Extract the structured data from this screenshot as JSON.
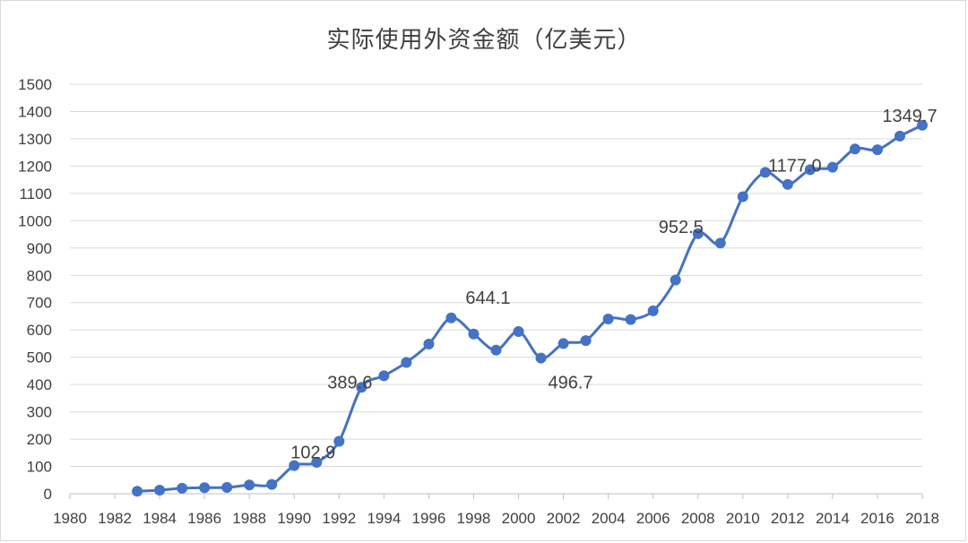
{
  "chart_data": {
    "type": "line",
    "title": "实际使用外资金额（亿美元）",
    "ylim": [
      0,
      1500
    ],
    "y_ticks": [
      0,
      100,
      200,
      300,
      400,
      500,
      600,
      700,
      800,
      900,
      1000,
      1100,
      1200,
      1300,
      1400,
      1500
    ],
    "xlim": [
      1980,
      2018
    ],
    "x_ticks": [
      1980,
      1982,
      1984,
      1986,
      1988,
      1990,
      1992,
      1994,
      1996,
      1998,
      2000,
      2002,
      2004,
      2006,
      2008,
      2010,
      2012,
      2014,
      2016,
      2018
    ],
    "grid": true,
    "legend": "none",
    "series_color": "#4472C4",
    "x": [
      1983,
      1984,
      1985,
      1986,
      1987,
      1988,
      1989,
      1990,
      1991,
      1992,
      1993,
      1994,
      1995,
      1996,
      1997,
      1998,
      1999,
      2000,
      2001,
      2002,
      2003,
      2004,
      2005,
      2006,
      2007,
      2008,
      2009,
      2010,
      2011,
      2012,
      2013,
      2014,
      2015,
      2016,
      2017,
      2018
    ],
    "values": [
      9,
      13,
      20,
      22,
      23,
      32,
      34,
      102.9,
      115,
      192,
      389.6,
      432,
      481,
      548,
      644.1,
      585,
      526,
      594,
      496.7,
      550,
      561,
      640,
      638,
      670,
      783,
      952.5,
      918,
      1088,
      1177.0,
      1133,
      1187,
      1196,
      1263,
      1260,
      1310,
      1349.7
    ],
    "data_labels": [
      {
        "x": 1990,
        "text": "102.9"
      },
      {
        "x": 1993,
        "text": "389.6"
      },
      {
        "x": 1997,
        "text": "644.1"
      },
      {
        "x": 2001,
        "text": "496.7"
      },
      {
        "x": 2008,
        "text": "952.5"
      },
      {
        "x": 2011,
        "text": "1177.0"
      },
      {
        "x": 2018,
        "text": "1349.7"
      }
    ]
  }
}
